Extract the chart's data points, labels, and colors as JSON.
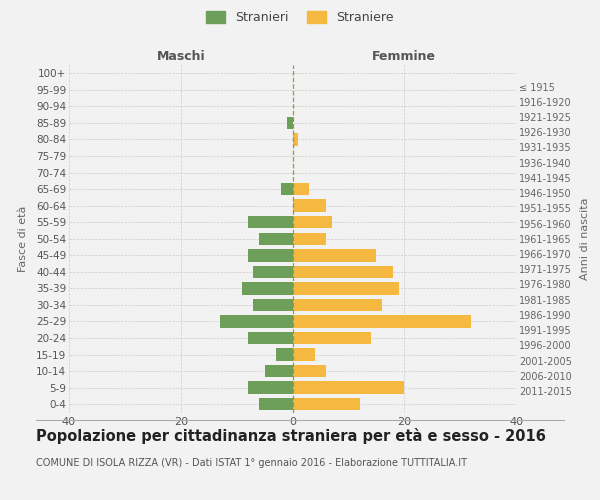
{
  "age_groups": [
    "100+",
    "95-99",
    "90-94",
    "85-89",
    "80-84",
    "75-79",
    "70-74",
    "65-69",
    "60-64",
    "55-59",
    "50-54",
    "45-49",
    "40-44",
    "35-39",
    "30-34",
    "25-29",
    "20-24",
    "15-19",
    "10-14",
    "5-9",
    "0-4"
  ],
  "birth_years": [
    "≤ 1915",
    "1916-1920",
    "1921-1925",
    "1926-1930",
    "1931-1935",
    "1936-1940",
    "1941-1945",
    "1946-1950",
    "1951-1955",
    "1956-1960",
    "1961-1965",
    "1966-1970",
    "1971-1975",
    "1976-1980",
    "1981-1985",
    "1986-1990",
    "1991-1995",
    "1996-2000",
    "2001-2005",
    "2006-2010",
    "2011-2015"
  ],
  "males": [
    0,
    0,
    0,
    -1,
    0,
    0,
    0,
    -2,
    0,
    -8,
    -6,
    -8,
    -7,
    -9,
    -7,
    -13,
    -8,
    -3,
    -5,
    -8,
    -6
  ],
  "females": [
    0,
    0,
    0,
    0,
    1,
    0,
    0,
    3,
    6,
    7,
    6,
    15,
    18,
    19,
    16,
    32,
    14,
    4,
    6,
    20,
    12
  ],
  "male_color": "#6d9e5a",
  "female_color": "#f5b942",
  "bg_color": "#f2f2f2",
  "grid_color": "#cccccc",
  "bar_height": 0.75,
  "xlim": [
    -40,
    40
  ],
  "title_main": "Popolazione per cittadinanza straniera per età e sesso - 2016",
  "title_sub": "COMUNE DI ISOLA RIZZA (VR) - Dati ISTAT 1° gennaio 2016 - Elaborazione TUTTITALIA.IT",
  "ylabel_left": "Fasce di età",
  "ylabel_right": "Anni di nascita",
  "xlabel_left": "Maschi",
  "xlabel_right": "Femmine",
  "legend_male": "Stranieri",
  "legend_female": "Straniere",
  "xticks": [
    -40,
    -20,
    0,
    20,
    40
  ],
  "xtick_labels": [
    "40",
    "20",
    "0",
    "20",
    "40"
  ],
  "center_line_color": "#999944",
  "title_main_fontsize": 10.5,
  "title_sub_fontsize": 7.0
}
